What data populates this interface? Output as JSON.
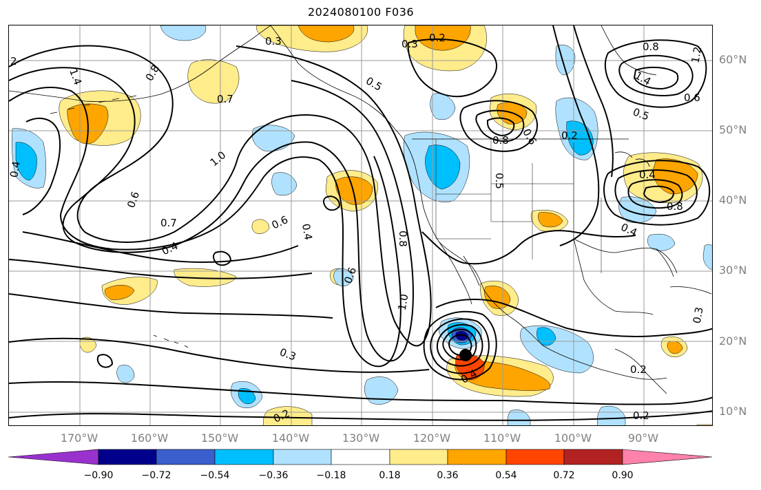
{
  "title": "2024080100 F036",
  "lat_labels": [
    "60°N",
    "50°N",
    "40°N",
    "30°N",
    "20°N",
    "10°N"
  ],
  "lon_labels": [
    "170°W",
    "160°W",
    "150°W",
    "140°W",
    "130°W",
    "120°W",
    "110°W",
    "100°W",
    "90°W"
  ],
  "colorbar": {
    "ticks": [
      "−0.90",
      "−0.72",
      "−0.54",
      "−0.36",
      "−0.18",
      "0.18",
      "0.36",
      "0.54",
      "0.72",
      "0.90"
    ],
    "colors": [
      "#9932CC",
      "#00008B",
      "#3A5FCD",
      "#00BFFF",
      "#B0E2FF",
      "#FFFFFF",
      "#FFEC8B",
      "#FFA500",
      "#FF4500",
      "#B22222",
      "#FF82AB"
    ]
  },
  "contour_labels": [
    {
      "text": "2"
    },
    {
      "text": "1.4"
    },
    {
      "text": "0.8"
    },
    {
      "text": "0.7"
    },
    {
      "text": "0.3"
    },
    {
      "text": "0.5"
    },
    {
      "text": "0.2"
    },
    {
      "text": "0.3"
    },
    {
      "text": "1.4"
    },
    {
      "text": "0.8"
    },
    {
      "text": "0.6"
    },
    {
      "text": "1.2"
    },
    {
      "text": "0.5"
    },
    {
      "text": "0.6"
    },
    {
      "text": "1.0"
    },
    {
      "text": "0.6"
    },
    {
      "text": "0.4"
    },
    {
      "text": "0.7"
    },
    {
      "text": "0.4"
    },
    {
      "text": "0.6"
    },
    {
      "text": "0.4"
    },
    {
      "text": "0.6"
    },
    {
      "text": "0.8"
    },
    {
      "text": "1.0"
    },
    {
      "text": "0.3"
    },
    {
      "text": "0.2"
    },
    {
      "text": "0.8"
    },
    {
      "text": "0.5"
    },
    {
      "text": "0.2"
    },
    {
      "text": "0.4"
    },
    {
      "text": "0.8"
    },
    {
      "text": "0.2"
    },
    {
      "text": "0.2"
    },
    {
      "text": "0.3"
    },
    {
      "text": "0.4"
    },
    {
      "text": "0.4"
    }
  ]
}
